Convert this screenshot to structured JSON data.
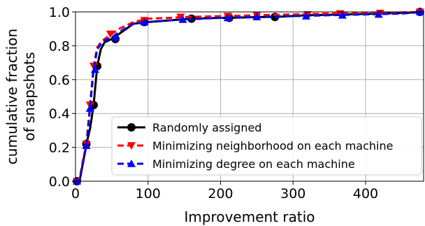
{
  "chart_data": {
    "type": "line",
    "title": "",
    "xlabel": "Improvement ratio",
    "ylabel": [
      "cumulative fraction",
      "of snapshots"
    ],
    "xlim": [
      0,
      480
    ],
    "ylim": [
      0.0,
      1.0
    ],
    "xticks": [
      0,
      100,
      200,
      300,
      400
    ],
    "yticks": [
      0.0,
      0.2,
      0.4,
      0.6,
      0.8,
      1.0
    ],
    "grid": true,
    "legend_position": "lower-right",
    "series": [
      {
        "name": "Randomly assigned",
        "color": "#000000",
        "linestyle": "solid",
        "marker": "circle",
        "x": [
          0,
          3,
          6,
          10,
          15,
          20,
          25,
          30,
          35,
          40,
          50,
          60,
          80,
          100,
          130,
          160,
          200,
          212,
          260,
          275,
          320,
          370,
          420,
          460,
          480
        ],
        "y": [
          0.0,
          0.0,
          0.01,
          0.1,
          0.22,
          0.31,
          0.45,
          0.68,
          0.78,
          0.82,
          0.84,
          0.87,
          0.93,
          0.94,
          0.95,
          0.96,
          0.965,
          0.965,
          0.97,
          0.97,
          0.98,
          0.985,
          0.99,
          0.995,
          1.0
        ],
        "marker_x": [
          2,
          15,
          25,
          30,
          55,
          95,
          160,
          212,
          275,
          475
        ],
        "marker_y": [
          0.0,
          0.22,
          0.45,
          0.68,
          0.84,
          0.94,
          0.96,
          0.965,
          0.97,
          1.0
        ]
      },
      {
        "name": "Minimizing neighborhood on each machine",
        "color": "#ff0000",
        "linestyle": "dashed",
        "marker": "triangle-down",
        "x": [
          0,
          3,
          6,
          10,
          15,
          20,
          25,
          30,
          35,
          40,
          50,
          60,
          80,
          100,
          130,
          150,
          200,
          250,
          300,
          350,
          400,
          450,
          480
        ],
        "y": [
          0.0,
          0.0,
          0.02,
          0.12,
          0.22,
          0.45,
          0.68,
          0.79,
          0.82,
          0.84,
          0.87,
          0.9,
          0.94,
          0.96,
          0.965,
          0.97,
          0.975,
          0.98,
          0.985,
          0.99,
          0.993,
          0.997,
          1.0
        ],
        "marker_x": [
          2,
          15,
          20,
          25,
          48,
          95,
          145,
          210,
          250,
          320,
          365,
          420,
          475
        ],
        "marker_y": [
          0.0,
          0.22,
          0.45,
          0.68,
          0.87,
          0.95,
          0.97,
          0.975,
          0.98,
          0.985,
          0.99,
          0.993,
          1.0
        ]
      },
      {
        "name": "Minimizing degree on each machine",
        "color": "#0000ff",
        "linestyle": "dashed",
        "marker": "triangle-up",
        "x": [
          0,
          3,
          6,
          10,
          15,
          20,
          25,
          30,
          35,
          40,
          50,
          60,
          80,
          100,
          130,
          150,
          200,
          250,
          300,
          350,
          400,
          450,
          480
        ],
        "y": [
          0.0,
          0.0,
          0.01,
          0.1,
          0.21,
          0.43,
          0.66,
          0.78,
          0.81,
          0.83,
          0.85,
          0.88,
          0.93,
          0.94,
          0.95,
          0.955,
          0.965,
          0.97,
          0.975,
          0.98,
          0.985,
          0.99,
          1.0
        ],
        "marker_x": [
          2,
          15,
          20,
          27,
          55,
          95,
          148,
          210,
          250,
          318,
          368,
          418,
          475
        ],
        "marker_y": [
          0.0,
          0.21,
          0.43,
          0.66,
          0.85,
          0.94,
          0.955,
          0.965,
          0.97,
          0.975,
          0.98,
          0.985,
          1.0
        ]
      }
    ]
  }
}
